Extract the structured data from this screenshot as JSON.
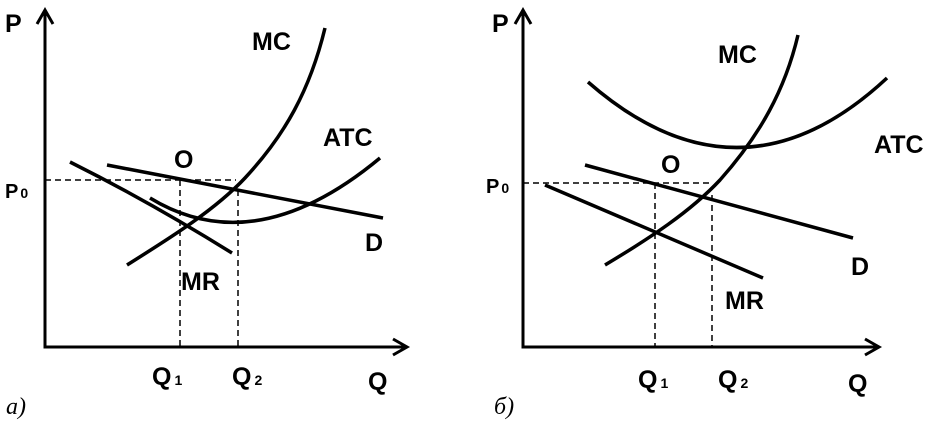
{
  "panels": [
    {
      "caption": "a)",
      "axes": {
        "y": "P",
        "x": "Q"
      },
      "price": {
        "text": "P",
        "sub": "0"
      },
      "quantities": [
        {
          "text": "Q",
          "sub": "1"
        },
        {
          "text": "Q",
          "sub": "2"
        }
      ],
      "curves": {
        "mc": "MC",
        "atc": "ATC",
        "d": "D",
        "mr": "MR"
      },
      "point": "O"
    },
    {
      "caption": "б)",
      "axes": {
        "y": "P",
        "x": "Q"
      },
      "price": {
        "text": "P",
        "sub": "0"
      },
      "quantities": [
        {
          "text": "Q",
          "sub": "1"
        },
        {
          "text": "Q",
          "sub": "2"
        }
      ],
      "curves": {
        "mc": "MC",
        "atc": "ATC",
        "d": "D",
        "mr": "MR"
      },
      "point": "O"
    }
  ]
}
